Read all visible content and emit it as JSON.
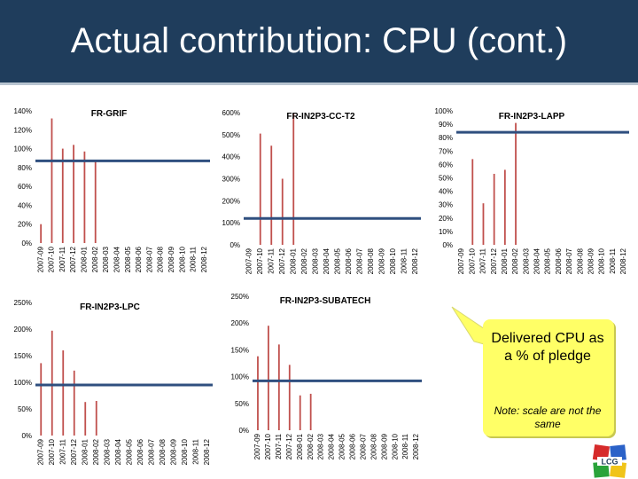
{
  "slide": {
    "title": "Actual contribution: CPU (cont.)",
    "callout": {
      "text": "Delivered CPU as a % of pledge",
      "note": "Note: scale are not the same"
    },
    "logo_text": "LCG",
    "colors": {
      "header": "#1f3d5c",
      "bar": "#c0504d",
      "pledge_line": "#2f4f7f",
      "callout": "#ffff66"
    }
  },
  "chart_data": [
    {
      "type": "bar",
      "title": "FR-GRIF",
      "categories": [
        "2007-09",
        "2007-10",
        "2007-11",
        "2007-12",
        "2008-01",
        "2008-02",
        "2008-03",
        "2008-04",
        "2008-05",
        "2008-06",
        "2008-07",
        "2008-08",
        "2008-09",
        "2008-10",
        "2008-11",
        "2008-12"
      ],
      "values": [
        20,
        132,
        100,
        104,
        97,
        87,
        0,
        0,
        0,
        0,
        0,
        0,
        0,
        0,
        0,
        0
      ],
      "pledge": 87,
      "ylim": [
        0,
        140
      ],
      "yticks": [
        0,
        20,
        40,
        60,
        80,
        100,
        120,
        140
      ],
      "ytick_labels": [
        "0%",
        "20%",
        "40%",
        "60%",
        "80%",
        "100%",
        "120%",
        "140%"
      ]
    },
    {
      "type": "bar",
      "title": "FR-IN2P3-CC-T2",
      "categories": [
        "2007-09",
        "2007-10",
        "2007-11",
        "2007-12",
        "2008-01",
        "2008-02",
        "2008-03",
        "2008-04",
        "2008-05",
        "2008-06",
        "2008-07",
        "2008-08",
        "2008-09",
        "2008-10",
        "2008-11",
        "2008-12"
      ],
      "values": [
        0,
        505,
        450,
        300,
        600,
        0,
        0,
        0,
        0,
        0,
        0,
        0,
        0,
        0,
        0,
        0
      ],
      "pledge": 120,
      "ylim": [
        0,
        600
      ],
      "yticks": [
        0,
        100,
        200,
        300,
        400,
        500,
        600
      ],
      "ytick_labels": [
        "0%",
        "100%",
        "200%",
        "300%",
        "400%",
        "500%",
        "600%"
      ]
    },
    {
      "type": "bar",
      "title": "FR-IN2P3-LAPP",
      "categories": [
        "2007-09",
        "2007-10",
        "2007-11",
        "2007-12",
        "2008-01",
        "2008-02",
        "2008-03",
        "2008-04",
        "2008-05",
        "2008-06",
        "2008-07",
        "2008-08",
        "2008-09",
        "2008-10",
        "2008-11",
        "2008-12"
      ],
      "values": [
        0,
        64,
        31,
        53,
        56,
        91,
        0,
        0,
        0,
        0,
        0,
        0,
        0,
        0,
        0,
        0
      ],
      "pledge": 84,
      "ylim": [
        0,
        100
      ],
      "yticks": [
        0,
        10,
        20,
        30,
        40,
        50,
        60,
        70,
        80,
        90,
        100
      ],
      "ytick_labels": [
        "0%",
        "10%",
        "20%",
        "30%",
        "40%",
        "50%",
        "60%",
        "70%",
        "80%",
        "90%",
        "100%"
      ]
    },
    {
      "type": "bar",
      "title": "FR-IN2P3-LPC",
      "categories": [
        "2007-09",
        "2007-10",
        "2007-11",
        "2007-12",
        "2008-01",
        "2008-02",
        "2008-03",
        "2008-04",
        "2008-05",
        "2008-06",
        "2008-07",
        "2008-08",
        "2008-09",
        "2008-10",
        "2008-11",
        "2008-12"
      ],
      "values": [
        136,
        197,
        160,
        122,
        63,
        65,
        0,
        0,
        0,
        0,
        0,
        0,
        0,
        0,
        0,
        0
      ],
      "pledge": 95,
      "ylim": [
        0,
        250
      ],
      "yticks": [
        0,
        50,
        100,
        150,
        200,
        250
      ],
      "ytick_labels": [
        "0%",
        "50%",
        "100%",
        "150%",
        "200%",
        "250%"
      ]
    },
    {
      "type": "bar",
      "title": "FR-IN2P3-SUBATECH",
      "categories": [
        "2007-09",
        "2007-10",
        "2007-11",
        "2007-12",
        "2008-01",
        "2008-02",
        "2008-03",
        "2008-04",
        "2008-05",
        "2008-06",
        "2008-07",
        "2008-08",
        "2008-09",
        "2008-10",
        "2008-11",
        "2008-12"
      ],
      "values": [
        138,
        195,
        160,
        122,
        65,
        68,
        0,
        0,
        0,
        0,
        0,
        0,
        0,
        0,
        0,
        0
      ],
      "pledge": 92,
      "ylim": [
        0,
        250
      ],
      "yticks": [
        0,
        50,
        100,
        150,
        200,
        250
      ],
      "ytick_labels": [
        "0%",
        "50%",
        "100%",
        "150%",
        "200%",
        "250%"
      ]
    }
  ]
}
